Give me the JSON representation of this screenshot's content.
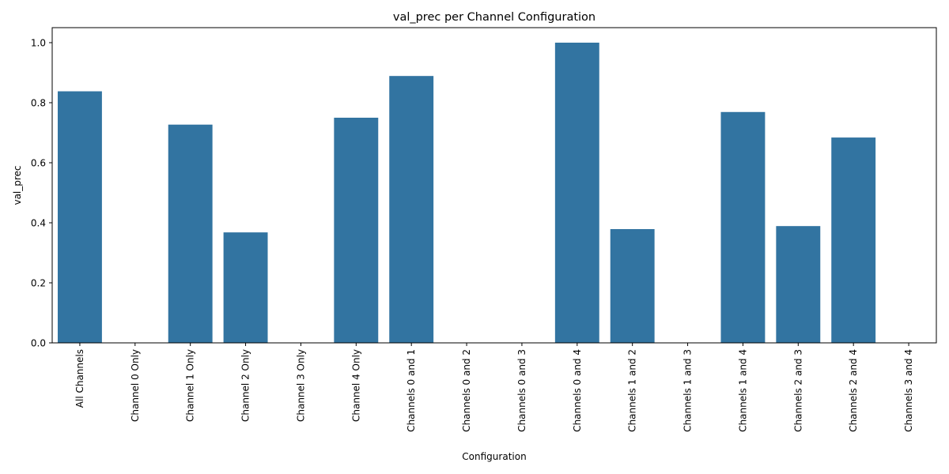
{
  "chart_data": {
    "type": "bar",
    "title": "val_prec per Channel Configuration",
    "xlabel": "Configuration",
    "ylabel": "val_prec",
    "ylim": [
      0,
      1.05
    ],
    "yticks": [
      "0.0",
      "0.2",
      "0.4",
      "0.6",
      "0.8",
      "1.0"
    ],
    "grid": false,
    "bar_color": "#3274a1",
    "categories": [
      "All Channels",
      "Channel 0 Only",
      "Channel 1 Only",
      "Channel 2 Only",
      "Channel 3 Only",
      "Channel 4 Only",
      "Channels 0 and 1",
      "Channels 0 and 2",
      "Channels 0 and 3",
      "Channels 0 and 4",
      "Channels 1 and 2",
      "Channels 1 and 3",
      "Channels 1 and 4",
      "Channels 2 and 3",
      "Channels 2 and 4",
      "Channels 3 and 4"
    ],
    "values": [
      0.838,
      0,
      0.727,
      0.368,
      0,
      0.75,
      0.889,
      0,
      0,
      1.0,
      0.379,
      0,
      0.769,
      0.389,
      0.684,
      0
    ]
  }
}
